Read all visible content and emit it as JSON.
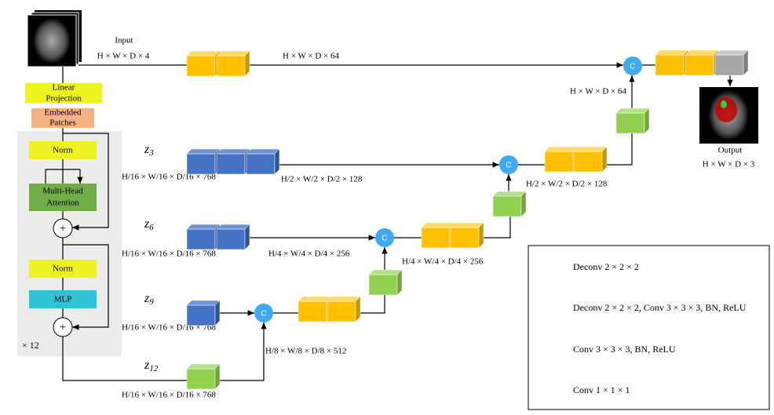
{
  "input": {
    "label": "Input",
    "shape": "H × W × D × 4"
  },
  "encoder": {
    "linear_projection": [
      "Linear",
      "Projection"
    ],
    "embedded_patches": [
      "Embedded",
      "Patches"
    ],
    "norm_1": "Norm",
    "attention": [
      "Multi-Head",
      "Attention"
    ],
    "add": "+",
    "norm_2": "Norm",
    "mlp": "MLP",
    "repeat": "× 12"
  },
  "concat": "C",
  "skips": [
    {
      "z": "z",
      "index": "3",
      "shape": "H/16 × W/16 × D/16 × 768"
    },
    {
      "z": "z",
      "index": "6",
      "shape": "H/16 × W/16 × D/16 × 768"
    },
    {
      "z": "z",
      "index": "9",
      "shape": "H/16 × W/16 × D/16 × 768"
    },
    {
      "z": "z",
      "index": "12",
      "shape": "H/16 × W/16 × D/16 × 768"
    }
  ],
  "shapes": {
    "full_64_top": "H × W × D × 64",
    "full_64_right": "H × W × D × 64",
    "half_128_left": "H/2 × W/2 × D/2 × 128",
    "half_128_right": "H/2 × W/2 × D/2 × 128",
    "quarter_256_left": "H/4 × W/4 × D/4 × 256",
    "quarter_256_right": "H/4 × W/4 × D/4 × 256",
    "eighth_512": "H/8 × W/8 × D/8 × 512"
  },
  "output": {
    "label": "Output",
    "shape": "H × W × D × 3"
  },
  "legend": [
    "Deconv 2 × 2 × 2",
    "Deconv 2 × 2 × 2, Conv 3 × 3 × 3, BN, ReLU",
    "Conv 3 × 3 × 3, BN, ReLU",
    "Conv 1 × 1 × 1"
  ]
}
